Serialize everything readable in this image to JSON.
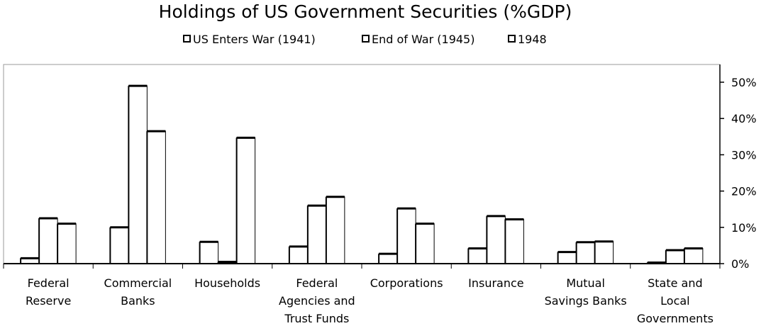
{
  "chart_data": {
    "type": "bar",
    "title": "Holdings of US Government Securities (%GDP)",
    "categories": [
      [
        "Federal",
        "Reserve"
      ],
      [
        "Commercial",
        "Banks"
      ],
      [
        "Households"
      ],
      [
        "Federal",
        "Agencies and",
        "Trust Funds"
      ],
      [
        "Corporations"
      ],
      [
        "Insurance"
      ],
      [
        "Mutual",
        "Savings Banks"
      ],
      [
        "State and",
        "Local",
        "Governments"
      ]
    ],
    "series": [
      {
        "name": "US Enters War (1941)",
        "values": [
          1.5,
          10,
          6,
          4.7,
          2.7,
          4.2,
          3.2,
          0.3
        ]
      },
      {
        "name": "End of War (1945)",
        "values": [
          12.5,
          49,
          0.5,
          16,
          15.2,
          13.1,
          5.9,
          3.7
        ]
      },
      {
        "name": "1948",
        "values": [
          11,
          36.5,
          34.7,
          18.4,
          11,
          12.2,
          6.1,
          4.2
        ]
      }
    ],
    "y_ticks": [
      "0%",
      "10%",
      "20%",
      "30%",
      "40%",
      "50%"
    ],
    "ylim": [
      0,
      55
    ],
    "y_axis_side": "right",
    "grid": false,
    "legend_position": "top",
    "colors": {
      "bar_fill": "#ffffff",
      "bar_stroke": "#000000"
    }
  }
}
